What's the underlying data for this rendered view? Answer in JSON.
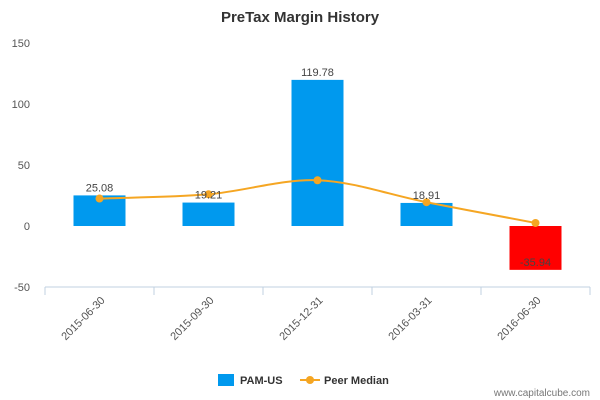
{
  "chart_data": {
    "type": "bar",
    "title": "PreTax Margin History",
    "categories": [
      "2015-06-30",
      "2015-09-30",
      "2015-12-31",
      "2016-03-31",
      "2016-06-30"
    ],
    "series": [
      {
        "name": "PAM-US",
        "type": "bar",
        "values": [
          25.08,
          19.21,
          119.78,
          18.91,
          -35.94
        ],
        "data_labels": [
          "25.08",
          "19.21",
          "119.78",
          "18.91",
          "-35.94"
        ],
        "color": "#0099ee",
        "negative_color": "#ff0000"
      },
      {
        "name": "Peer Median",
        "type": "line",
        "values": [
          22.5,
          26,
          37.5,
          19.5,
          2.5
        ],
        "color": "#f5a623"
      }
    ],
    "yticks": [
      150,
      100,
      50,
      0,
      -50
    ],
    "ylim": [
      -50,
      150
    ],
    "grid": false,
    "legend_position": "bottom-center"
  },
  "watermark": "www.capitalcube.com"
}
